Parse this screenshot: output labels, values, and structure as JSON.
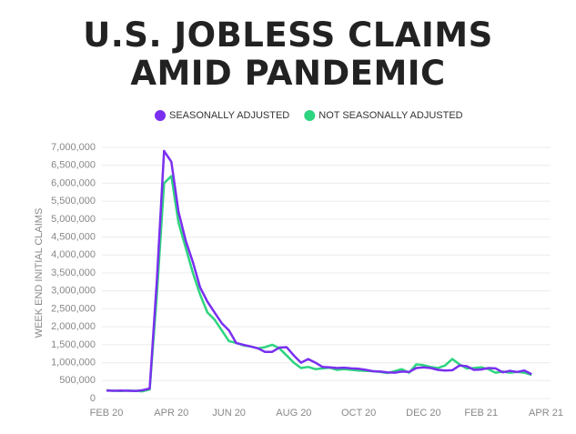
{
  "chart_data": {
    "type": "line",
    "title": "U.S. JOBLESS CLAIMS AMID PANDEMIC",
    "y_label": "WEEK END INITIAL CLAIMS",
    "grid": true,
    "legend": "top",
    "categories": [
      "FEB 20",
      null,
      null,
      null,
      null,
      null,
      null,
      null,
      null,
      "APR 20",
      null,
      null,
      null,
      null,
      null,
      null,
      null,
      "JUN 20",
      null,
      null,
      null,
      null,
      null,
      null,
      null,
      null,
      "AUG 20",
      null,
      null,
      null,
      null,
      null,
      null,
      null,
      null,
      "OCT 20",
      null,
      null,
      null,
      null,
      null,
      null,
      null,
      null,
      "DEC 20",
      null,
      null,
      null,
      null,
      null,
      null,
      null,
      "FEB 21",
      null,
      null,
      null,
      null,
      null,
      null,
      null,
      null,
      "APR 21"
    ],
    "ylim": [
      0,
      7000000
    ],
    "yticks": [
      0,
      {
        "value": 500000,
        "label": "500,000"
      },
      {
        "value": 1000000,
        "label": "1,000,000"
      },
      {
        "value": 1500000,
        "label": "1,500,000"
      },
      {
        "value": 2000000,
        "label": "2,000,000"
      },
      {
        "value": 2500000,
        "label": "2,500,000"
      },
      {
        "value": 3000000,
        "label": "3,000,000"
      },
      {
        "value": 3500000,
        "label": "3,500,000"
      },
      {
        "value": 4000000,
        "label": "4,000,000"
      },
      {
        "value": 4500000,
        "label": "4,500,000"
      },
      {
        "value": 5000000,
        "label": "5,000,000"
      },
      {
        "value": 5500000,
        "label": "5,500,000"
      },
      {
        "value": 6000000,
        "label": "6,000,000"
      },
      {
        "value": 6500000,
        "label": "6,500,000"
      },
      {
        "value": 7000000,
        "label": "7,000,000"
      }
    ],
    "series": [
      {
        "name": "SEASONALLY ADJUSTED",
        "color": "#7a2ff0",
        "values": [
          220000,
          215000,
          220000,
          215000,
          210000,
          230000,
          280000,
          3300000,
          6900000,
          6600000,
          5200000,
          4400000,
          3800000,
          3100000,
          2700000,
          2400000,
          2100000,
          1900000,
          1550000,
          1500000,
          1450000,
          1400000,
          1300000,
          1300000,
          1420000,
          1430000,
          1200000,
          1000000,
          1100000,
          1000000,
          880000,
          870000,
          850000,
          860000,
          840000,
          830000,
          800000,
          760000,
          750000,
          730000,
          720000,
          750000,
          740000,
          850000,
          870000,
          850000,
          800000,
          780000,
          790000,
          920000,
          900000,
          800000,
          810000,
          850000,
          840000,
          730000,
          770000,
          740000,
          780000,
          680000,
          null,
          null
        ]
      },
      {
        "name": "NOT SEASONALLY ADJUSTED",
        "color": "#2ed47f",
        "values": [
          230000,
          215000,
          210000,
          220000,
          215000,
          200000,
          250000,
          2900000,
          6000000,
          6200000,
          4900000,
          4200000,
          3500000,
          2900000,
          2400000,
          2200000,
          1900000,
          1600000,
          1550000,
          1480000,
          1450000,
          1400000,
          1430000,
          1500000,
          1400000,
          1200000,
          1000000,
          850000,
          880000,
          820000,
          840000,
          860000,
          800000,
          820000,
          800000,
          780000,
          770000,
          760000,
          740000,
          710000,
          760000,
          820000,
          720000,
          950000,
          930000,
          880000,
          850000,
          920000,
          1100000,
          950000,
          840000,
          850000,
          870000,
          820000,
          720000,
          750000,
          720000,
          740000,
          720000,
          660000,
          null,
          null
        ]
      }
    ]
  }
}
